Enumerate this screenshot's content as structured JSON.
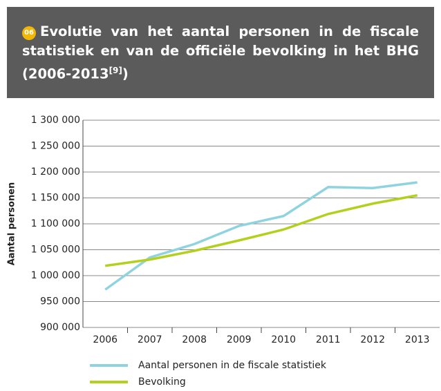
{
  "header": {
    "number": "06",
    "title": "Evolutie van het aantal personen in de fiscale statistiek en van de officiële bevolking in het BHG (2006-2013",
    "footnote": "[9]",
    "title_end": ")"
  },
  "chart_data": {
    "type": "line",
    "ylabel": "Aantal personen",
    "categories": [
      "2006",
      "2007",
      "2008",
      "2009",
      "2010",
      "2011",
      "2012",
      "2013"
    ],
    "series": [
      {
        "name": "Aantal personen in de fiscale statistiek",
        "color": "#8fd3e0",
        "values": [
          973000,
          1035000,
          1061000,
          1096000,
          1115000,
          1171000,
          1169000,
          1180000
        ]
      },
      {
        "name": "Bevolking",
        "color": "#b5cf1e",
        "values": [
          1019000,
          1031000,
          1048000,
          1068000,
          1089000,
          1119000,
          1139000,
          1155000
        ]
      }
    ],
    "ylim": [
      900000,
      1300000
    ],
    "yticks": [
      {
        "value": 900000,
        "label": "900 000"
      },
      {
        "value": 950000,
        "label": "950 000"
      },
      {
        "value": 1000000,
        "label": "1 000 000"
      },
      {
        "value": 1050000,
        "label": "1 050 000"
      },
      {
        "value": 1100000,
        "label": "1 100 000"
      },
      {
        "value": 1150000,
        "label": "1 150 000"
      },
      {
        "value": 1200000,
        "label": "1 200 000"
      },
      {
        "value": 1250000,
        "label": "1 250 000"
      },
      {
        "value": 1300000,
        "label": "1 300 000"
      }
    ],
    "grid": true
  }
}
